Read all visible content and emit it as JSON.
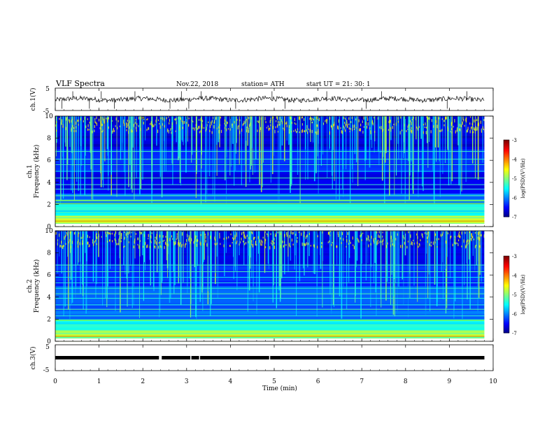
{
  "header": {
    "title": "VLF  Spectra",
    "date": "Nov.22, 2018",
    "station": "station= ATH",
    "start": "start  UT  =    21: 30: 1"
  },
  "chart_data": [
    {
      "type": "line",
      "name": "ch1-waveform",
      "ylabel": "ch.1(V)",
      "xlim": [
        0,
        10
      ],
      "ylim": [
        -5,
        5
      ],
      "yticks": [
        "5",
        "-5"
      ],
      "trace_end_min": 9.8,
      "spike_times_min": [
        0.15,
        0.4,
        0.78,
        1.05,
        1.35,
        1.82,
        2.62,
        2.88,
        3.05,
        3.33,
        4.12,
        4.95,
        5.25,
        6.2,
        7.1,
        7.45,
        8.95,
        9.4
      ]
    },
    {
      "type": "heatmap",
      "name": "ch1-spectrogram",
      "ylabel": "ch.1\nFrequency  (kHz)",
      "xlim": [
        0,
        10
      ],
      "ylim": [
        0,
        10
      ],
      "yticks": [
        "0",
        "2",
        "4",
        "6",
        "8",
        "10"
      ],
      "data_end_min": 9.8,
      "colorbar": {
        "label": "log(PSD)(V²/Hz)",
        "range": [
          -7,
          -3
        ],
        "ticks": [
          "-3",
          "-4",
          "-5",
          "-6",
          "-7"
        ]
      },
      "persistent_lines_khz": [
        0.3,
        0.5,
        0.8,
        1.3,
        1.6,
        2.0,
        2.4,
        2.8,
        3.4,
        3.8,
        4.4,
        5.0,
        5.6,
        6.1,
        6.8
      ],
      "transmitter_lines_khz": [
        0.5,
        2.1,
        2.35
      ]
    },
    {
      "type": "heatmap",
      "name": "ch2-spectrogram",
      "ylabel": "ch.2\nFrequency  (kHz)",
      "xlim": [
        0,
        10
      ],
      "ylim": [
        0,
        10
      ],
      "yticks": [
        "0",
        "2",
        "4",
        "6",
        "8",
        "10"
      ],
      "data_end_min": 9.8,
      "colorbar": {
        "label": "log(PSD)(V²/Hz)",
        "range": [
          -7,
          -3
        ],
        "ticks": [
          "-3",
          "-4",
          "-5",
          "-6",
          "-7"
        ]
      },
      "persistent_lines_khz": [
        0.35,
        0.7,
        1.0,
        1.5,
        1.9,
        2.3,
        2.9,
        3.3,
        3.9,
        4.3,
        4.8,
        5.3,
        5.8,
        6.3,
        6.9
      ],
      "transmitter_lines_khz": [
        0.45,
        1.9
      ]
    },
    {
      "type": "line",
      "name": "ch3-waveform",
      "ylabel": "ch.3(V)",
      "xlim": [
        0,
        10
      ],
      "ylim": [
        -5,
        5
      ],
      "yticks": [
        "5",
        "0",
        "-5"
      ],
      "xticks": [
        "0",
        "1",
        "2",
        "3",
        "4",
        "5",
        "6",
        "7",
        "8",
        "9",
        "10"
      ],
      "xlabel": "Time  (min)",
      "level_v": 0,
      "trace_end_min": 9.8,
      "gap_times_min": [
        2.4,
        3.1,
        3.3,
        4.9
      ]
    }
  ]
}
